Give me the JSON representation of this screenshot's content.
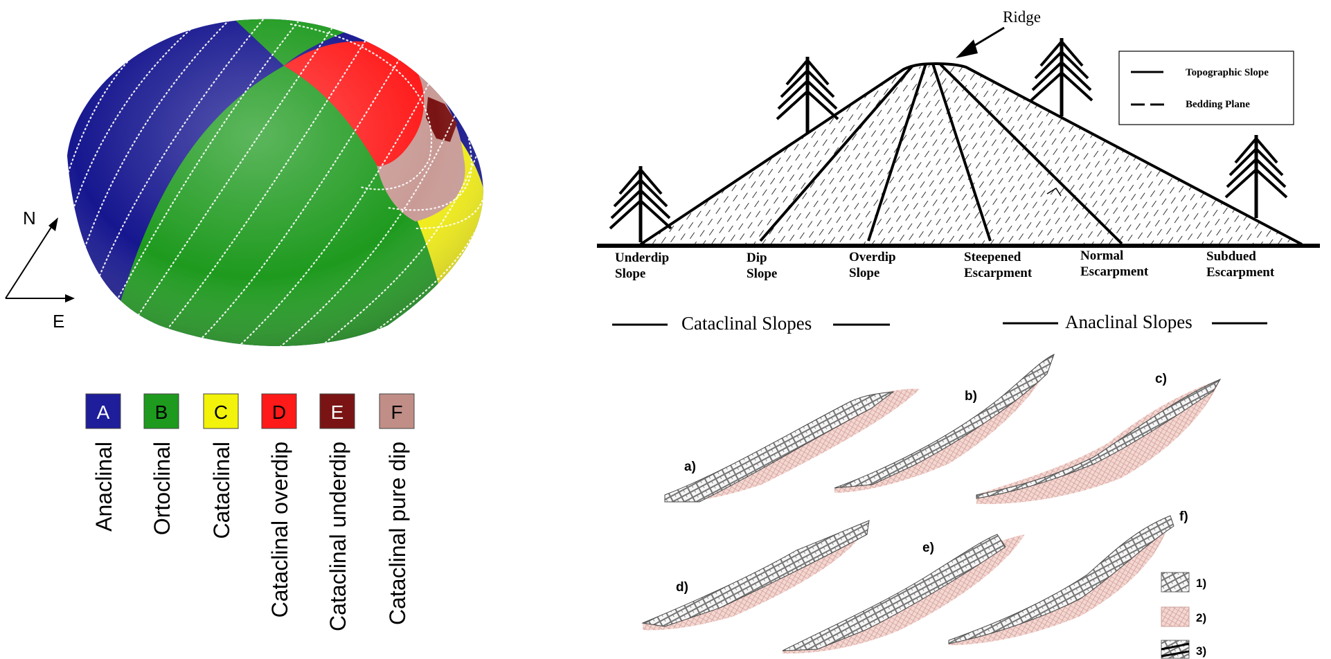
{
  "hemisphere": {
    "compass": {
      "north": "N",
      "east": "E"
    },
    "colors": {
      "A": "#16168f",
      "B": "#1e9a1e",
      "C": "#f2ee12",
      "D": "#ff1a1a",
      "E": "#7a1414",
      "F": "#c99b96"
    },
    "legend": [
      {
        "code": "A",
        "name": "Anaclinal",
        "color": "#1e1e9a",
        "text_color": "#ffffff"
      },
      {
        "code": "B",
        "name": "Ortoclinal",
        "color": "#1e9a1e",
        "text_color": "#000000"
      },
      {
        "code": "C",
        "name": "Cataclinal",
        "color": "#f2f20a",
        "text_color": "#000000"
      },
      {
        "code": "D",
        "name": "Cataclinal overdip",
        "color": "#ff1a1a",
        "text_color": "#000000"
      },
      {
        "code": "E",
        "name": "Cataclinal underdip",
        "color": "#7a1414",
        "text_color": "#ffffff"
      },
      {
        "code": "F",
        "name": "Cataclinal pure dip",
        "color": "#c08e86",
        "text_color": "#000000"
      }
    ]
  },
  "profile": {
    "ridge_label": "Ridge",
    "legend": {
      "topographic": "Topographic Slope",
      "bedding": "Bedding Plane"
    },
    "slopes": [
      {
        "line1": "Underdip",
        "line2": "Slope"
      },
      {
        "line1": "Dip",
        "line2": "Slope"
      },
      {
        "line1": "Overdip",
        "line2": "Slope"
      },
      {
        "line1": "Steepened",
        "line2": "Escarpment"
      },
      {
        "line1": "Normal",
        "line2": "Escarpment"
      },
      {
        "line1": "Subdued",
        "line2": "Escarpment"
      }
    ],
    "groups": {
      "cataclinal": "Cataclinal Slopes",
      "anaclinal": "Anaclinal Slopes"
    }
  },
  "sections": {
    "labels": [
      "a)",
      "b)",
      "c)",
      "d)",
      "e)",
      "f)"
    ],
    "legend": [
      "1)",
      "2)",
      "3)"
    ]
  }
}
